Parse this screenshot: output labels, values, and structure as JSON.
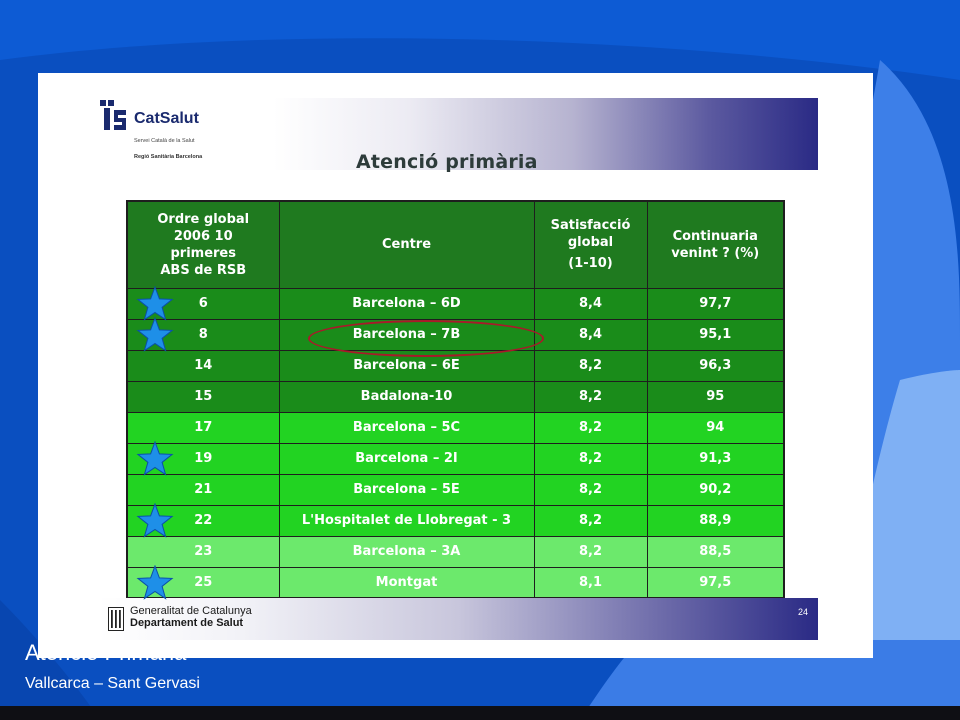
{
  "logo": {
    "name": "CatSalut",
    "subtitle": "Servei Català de la Salut",
    "region": "Regió Sanitària Barcelona"
  },
  "slide_title": "Atenció primària",
  "table": {
    "headers": {
      "rank": "Ordre global 2006 10 primeres ABS de RSB",
      "rank_lines": [
        "Ordre global",
        "2006  10",
        "primeres",
        "ABS de RSB"
      ],
      "centre": "Centre",
      "satisfaction": "Satisfacció global (1-10)",
      "satisfaction_lines": [
        "Satisfacció",
        "global",
        "(1-10)"
      ],
      "continuity": "Continuaria venint ? (%)",
      "continuity_lines": [
        "Continuaria",
        "venint ? (%)"
      ]
    },
    "rows": [
      {
        "rank": "6",
        "centre": "Barcelona – 6D",
        "satisfaction": "8,4",
        "continuity": "97,7",
        "shade": "dark",
        "starred": true
      },
      {
        "rank": "8",
        "centre": "Barcelona – 7B",
        "satisfaction": "8,4",
        "continuity": "95,1",
        "shade": "dark",
        "starred": true,
        "circled": true
      },
      {
        "rank": "14",
        "centre": "Barcelona – 6E",
        "satisfaction": "8,2",
        "continuity": "96,3",
        "shade": "dark",
        "starred": false
      },
      {
        "rank": "15",
        "centre": "Badalona-10",
        "satisfaction": "8,2",
        "continuity": "95",
        "shade": "dark",
        "starred": false
      },
      {
        "rank": "17",
        "centre": "Barcelona – 5C",
        "satisfaction": "8,2",
        "continuity": "94",
        "shade": "mid",
        "starred": false
      },
      {
        "rank": "19",
        "centre": "Barcelona – 2I",
        "satisfaction": "8,2",
        "continuity": "91,3",
        "shade": "mid",
        "starred": true
      },
      {
        "rank": "21",
        "centre": "Barcelona – 5E",
        "satisfaction": "8,2",
        "continuity": "90,2",
        "shade": "mid",
        "starred": false
      },
      {
        "rank": "22",
        "centre": "L'Hospitalet de Llobregat - 3",
        "satisfaction": "8,2",
        "continuity": "88,9",
        "shade": "mid",
        "starred": true
      },
      {
        "rank": "23",
        "centre": "Barcelona – 3A",
        "satisfaction": "8,2",
        "continuity": "88,5",
        "shade": "light",
        "starred": false
      },
      {
        "rank": "25",
        "centre": "Montgat",
        "satisfaction": "8,1",
        "continuity": "97,5",
        "shade": "light",
        "starred": true
      }
    ]
  },
  "footer": {
    "line1": "Generalitat de Catalunya",
    "line2": "Departament de Salut",
    "page_number": "24"
  },
  "overlay": {
    "title": "Atenció Primària",
    "subtitle": "Vallcarca – Sant Gervasi"
  },
  "colors": {
    "background": "#0a4fc0",
    "header_green": "#1f7a1f",
    "dark_green": "#1a8c1a",
    "mid_green": "#22d322",
    "light_green": "#6ce96c",
    "star_blue": "#1e8fe8",
    "ellipse_red": "#a81a2a"
  },
  "icons": [
    "catsalut-logo-icon",
    "star-icon",
    "generalitat-logo-icon"
  ]
}
